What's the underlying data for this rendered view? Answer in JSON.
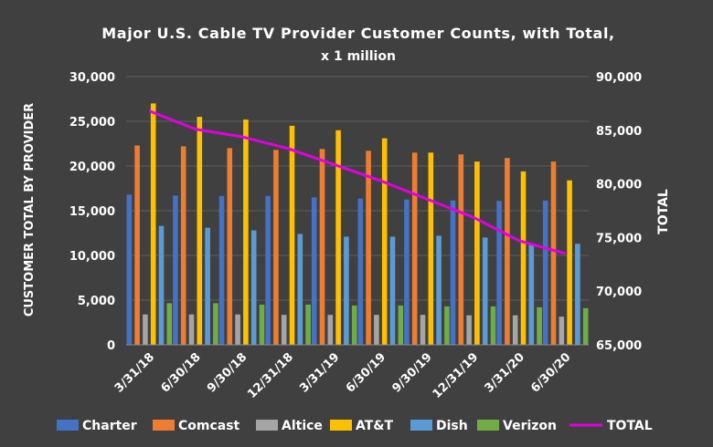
{
  "chart_data": {
    "type": "bar",
    "title": "Major U.S. Cable TV Provider Customer Counts, with Total,",
    "subtitle": "x 1 million",
    "ylabel": "CUSTOMER TOTAL BY PROVIDER",
    "y2label": "TOTAL",
    "ylim": [
      0,
      30000
    ],
    "y2lim": [
      65000,
      90000
    ],
    "y_ticks": [
      "0",
      "5,000",
      "10,000",
      "15,000",
      "20,000",
      "25,000",
      "30,000"
    ],
    "y2_ticks": [
      "65,000",
      "70,000",
      "75,000",
      "80,000",
      "85,000",
      "90,000"
    ],
    "grid": "horizontal",
    "legend_position": "bottom",
    "categories": [
      "3/31/18",
      "6/30/18",
      "9/30/18",
      "12/31/18",
      "3/31/19",
      "6/30/19",
      "9/30/19",
      "12/31/19",
      "3/31/20",
      "6/30/20"
    ],
    "series": [
      {
        "name": "Charter",
        "color": "#4472C4",
        "values": [
          16800,
          16700,
          16650,
          16650,
          16500,
          16350,
          16250,
          16150,
          16100,
          16150
        ]
      },
      {
        "name": "Comcast",
        "color": "#ED7D31",
        "values": [
          22300,
          22200,
          22000,
          21800,
          21900,
          21700,
          21500,
          21300,
          20900,
          20500
        ]
      },
      {
        "name": "Altice",
        "color": "#A5A5A5",
        "values": [
          3400,
          3400,
          3400,
          3350,
          3350,
          3350,
          3350,
          3300,
          3300,
          3150
        ]
      },
      {
        "name": "AT&T",
        "color": "#FFC000",
        "values": [
          27000,
          25500,
          25200,
          24500,
          24000,
          23100,
          21500,
          20500,
          19400,
          18400
        ]
      },
      {
        "name": "Dish",
        "color": "#5B9BD5",
        "values": [
          13300,
          13100,
          12800,
          12400,
          12100,
          12100,
          12200,
          12000,
          11300,
          11300
        ]
      },
      {
        "name": "Verizon",
        "color": "#70AD47",
        "values": [
          4650,
          4650,
          4500,
          4500,
          4400,
          4400,
          4300,
          4300,
          4200,
          4100
        ]
      }
    ],
    "line_series": {
      "name": "TOTAL",
      "color": "#E000E0",
      "axis": "y2",
      "values": [
        86800,
        85100,
        84400,
        83300,
        81800,
        80300,
        78600,
        76900,
        74700,
        73500
      ]
    }
  }
}
